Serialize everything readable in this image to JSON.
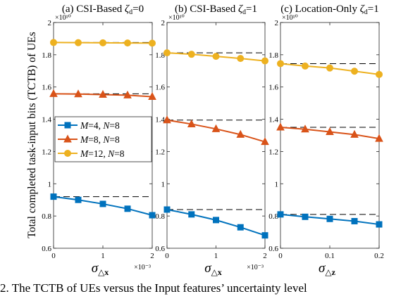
{
  "ylabel": "Total completed task-input bits (TCTB) of UEs",
  "caption": "2.   The TCTB of UEs versus the Input features’ uncertainty level",
  "legend": {
    "placement": "left, inside first panel",
    "entries": [
      {
        "m": "M",
        "m_val": "=4, ",
        "n": "N",
        "n_val": "=8"
      },
      {
        "m": "M",
        "m_val": "=8, ",
        "n": "N",
        "n_val": "=8"
      },
      {
        "m": "M",
        "m_val": "=12, ",
        "n": "N",
        "n_val": "=8"
      }
    ]
  },
  "colors": {
    "series1": "#0072BD",
    "series2": "#D95319",
    "series3": "#EDB120",
    "reference": "#000000"
  },
  "chart_data": [
    {
      "type": "line",
      "title_prefix": "(a) CSI-Based ",
      "title_zeta": "ζ",
      "title_sub": "d",
      "title_suffix": "=0",
      "xlabel_sigma": "σ",
      "xlabel_sub": "△x",
      "x_multiplier": "×10⁻³",
      "xlim": [
        0,
        2
      ],
      "xticks": [
        0,
        1,
        2
      ],
      "xtick_labels": [
        "0",
        "1",
        "2"
      ],
      "ylim": [
        0.6,
        2.0
      ],
      "yticks": [
        0.6,
        0.8,
        1.0,
        1.2,
        1.4,
        1.6,
        1.8,
        2.0
      ],
      "ytick_labels": [
        "0.6",
        "0.8",
        "1",
        "1.2",
        "1.4",
        "1.6",
        "1.8",
        "2"
      ],
      "y_multiplier": "×10¹⁰",
      "x": [
        0,
        0.5,
        1.0,
        1.5,
        2.0
      ],
      "series": [
        {
          "name": "M=4, N=8",
          "marker": "square",
          "values": [
            0.92,
            0.9,
            0.875,
            0.845,
            0.805
          ],
          "reference": 0.92
        },
        {
          "name": "M=8, N=8",
          "marker": "triangle",
          "values": [
            1.558,
            1.556,
            1.553,
            1.549,
            1.54
          ],
          "reference": 1.558
        },
        {
          "name": "M=12, N=8",
          "marker": "circle",
          "values": [
            1.876,
            1.875,
            1.874,
            1.873,
            1.872
          ],
          "reference": 1.876
        }
      ],
      "grid": false
    },
    {
      "type": "line",
      "title_prefix": "(b) CSI-Based ",
      "title_zeta": "ζ",
      "title_sub": "d",
      "title_suffix": "=1",
      "xlabel_sigma": "σ",
      "xlabel_sub": "△x",
      "x_multiplier": "×10⁻³",
      "xlim": [
        0,
        2
      ],
      "xticks": [
        0,
        1,
        2
      ],
      "xtick_labels": [
        "0",
        "1",
        "2"
      ],
      "ylim": [
        0.6,
        2.0
      ],
      "yticks": [
        0.6,
        0.8,
        1.0,
        1.2,
        1.4,
        1.6,
        1.8,
        2.0
      ],
      "ytick_labels": [
        "0.6",
        "0.8",
        "1",
        "1.2",
        "1.4",
        "1.6",
        "1.8",
        "2"
      ],
      "y_multiplier": "×10¹⁰",
      "x": [
        0,
        0.5,
        1.0,
        1.5,
        2.0
      ],
      "series": [
        {
          "name": "M=4, N=8",
          "marker": "square",
          "values": [
            0.84,
            0.81,
            0.775,
            0.73,
            0.68
          ],
          "reference": 0.84
        },
        {
          "name": "M=8, N=8",
          "marker": "triangle",
          "values": [
            1.395,
            1.37,
            1.34,
            1.305,
            1.26
          ],
          "reference": 1.395
        },
        {
          "name": "M=12, N=8",
          "marker": "circle",
          "values": [
            1.812,
            1.803,
            1.79,
            1.777,
            1.762
          ],
          "reference": 1.812
        }
      ],
      "grid": false
    },
    {
      "type": "line",
      "title_prefix": "(c) Location-Only ",
      "title_zeta": "ζ",
      "title_sub": "d",
      "title_suffix": "=1",
      "xlabel_sigma": "σ",
      "xlabel_sub": "△z",
      "x_multiplier": "",
      "xlim": [
        0,
        0.2
      ],
      "xticks": [
        0,
        0.1,
        0.2
      ],
      "xtick_labels": [
        "0",
        "0.1",
        "0.2"
      ],
      "ylim": [
        0.6,
        2.0
      ],
      "yticks": [
        0.6,
        0.8,
        1.0,
        1.2,
        1.4,
        1.6,
        1.8,
        2.0
      ],
      "ytick_labels": [
        "0.6",
        "0.8",
        "1",
        "1.2",
        "1.4",
        "1.6",
        "1.8",
        "2"
      ],
      "y_multiplier": "×10¹⁰",
      "x": [
        0,
        0.05,
        0.1,
        0.15,
        0.2
      ],
      "series": [
        {
          "name": "M=4, N=8",
          "marker": "square",
          "values": [
            0.81,
            0.795,
            0.782,
            0.768,
            0.748
          ],
          "reference": 0.81
        },
        {
          "name": "M=8, N=8",
          "marker": "triangle",
          "values": [
            1.35,
            1.338,
            1.322,
            1.305,
            1.28
          ],
          "reference": 1.35
        },
        {
          "name": "M=12, N=8",
          "marker": "circle",
          "values": [
            1.745,
            1.73,
            1.718,
            1.698,
            1.678
          ],
          "reference": 1.745
        }
      ],
      "grid": false
    }
  ]
}
